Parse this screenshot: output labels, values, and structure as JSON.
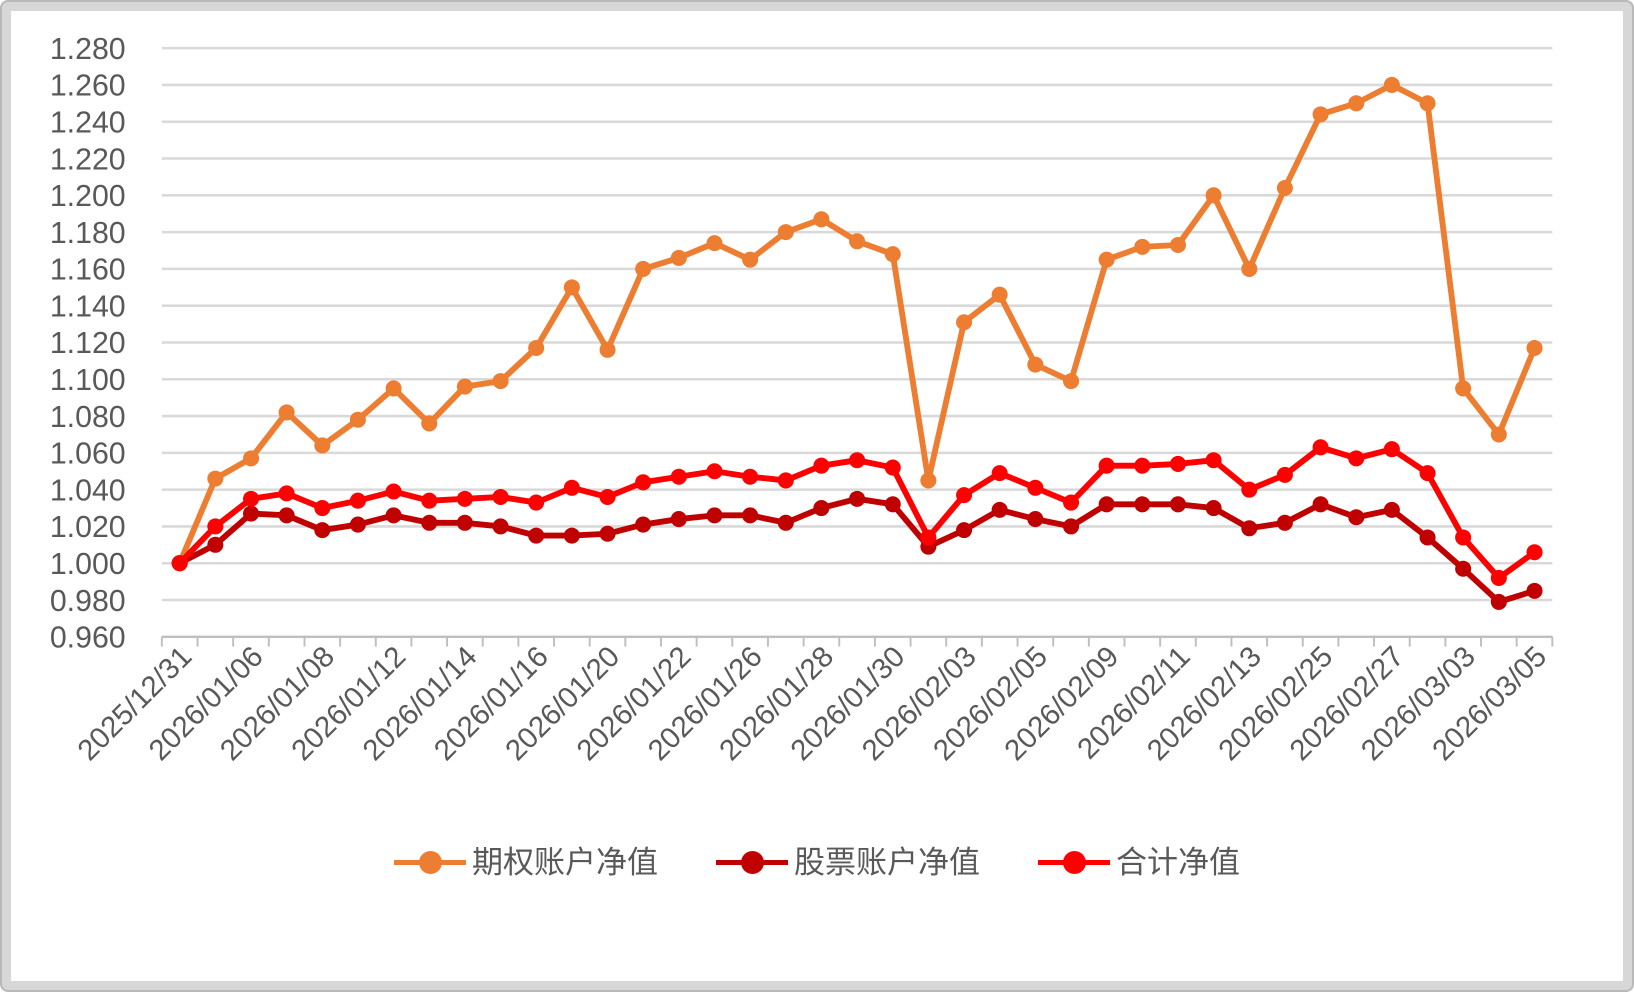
{
  "chart_data": {
    "type": "line",
    "title": "",
    "xlabel": "",
    "ylabel": "",
    "categories": [
      "2025/12/31",
      "2026/01/06",
      "2026/01/08",
      "2026/01/12",
      "2026/01/14",
      "2026/01/16",
      "2026/01/20",
      "2026/01/22",
      "2026/01/26",
      "2026/01/28",
      "2026/01/30",
      "2026/02/03",
      "2026/02/05",
      "2026/02/09",
      "2026/02/11",
      "2026/02/13",
      "2026/02/25",
      "2026/02/27",
      "2026/03/03",
      "2026/03/05"
    ],
    "label_every_n_points": 2,
    "n_points": 39,
    "series": [
      {
        "name": "期权账户净值",
        "color": "#ED7D31",
        "values": [
          1.0,
          1.046,
          1.057,
          1.082,
          1.064,
          1.078,
          1.095,
          1.076,
          1.096,
          1.099,
          1.117,
          1.15,
          1.116,
          1.16,
          1.166,
          1.174,
          1.165,
          1.18,
          1.187,
          1.175,
          1.168,
          1.045,
          1.131,
          1.146,
          1.108,
          1.099,
          1.165,
          1.172,
          1.173,
          1.2,
          1.16,
          1.204,
          1.244,
          1.25,
          1.26,
          1.25,
          1.095,
          1.07,
          1.117
        ]
      },
      {
        "name": "股票账户净值",
        "color": "#C00000",
        "values": [
          1.0,
          1.01,
          1.027,
          1.026,
          1.018,
          1.021,
          1.026,
          1.022,
          1.022,
          1.02,
          1.015,
          1.015,
          1.016,
          1.021,
          1.024,
          1.026,
          1.026,
          1.022,
          1.03,
          1.035,
          1.032,
          1.009,
          1.018,
          1.029,
          1.024,
          1.02,
          1.032,
          1.032,
          1.032,
          1.03,
          1.019,
          1.022,
          1.032,
          1.025,
          1.029,
          1.014,
          0.997,
          0.979,
          0.985
        ]
      },
      {
        "name": "合计净值",
        "color": "#FF0000",
        "values": [
          1.0,
          1.02,
          1.035,
          1.038,
          1.03,
          1.034,
          1.039,
          1.034,
          1.035,
          1.036,
          1.033,
          1.041,
          1.036,
          1.044,
          1.047,
          1.05,
          1.047,
          1.045,
          1.053,
          1.056,
          1.052,
          1.014,
          1.037,
          1.049,
          1.041,
          1.033,
          1.053,
          1.053,
          1.054,
          1.056,
          1.04,
          1.048,
          1.063,
          1.057,
          1.062,
          1.049,
          1.014,
          0.992,
          1.006
        ]
      }
    ],
    "ylim": [
      0.96,
      1.28
    ],
    "ytick_step": 0.02,
    "yticks": [
      "0.960",
      "0.980",
      "1.000",
      "1.020",
      "1.040",
      "1.060",
      "1.080",
      "1.100",
      "1.120",
      "1.140",
      "1.160",
      "1.180",
      "1.200",
      "1.220",
      "1.240",
      "1.260",
      "1.280"
    ],
    "grid": "horizontal",
    "legend_position": "bottom",
    "style": {
      "grid_color": "#D9D9D9",
      "axis_color": "#BFBFBF",
      "text_color": "#595959",
      "background": "#FFFFFF",
      "frame_color": "#D7D7D7"
    }
  }
}
